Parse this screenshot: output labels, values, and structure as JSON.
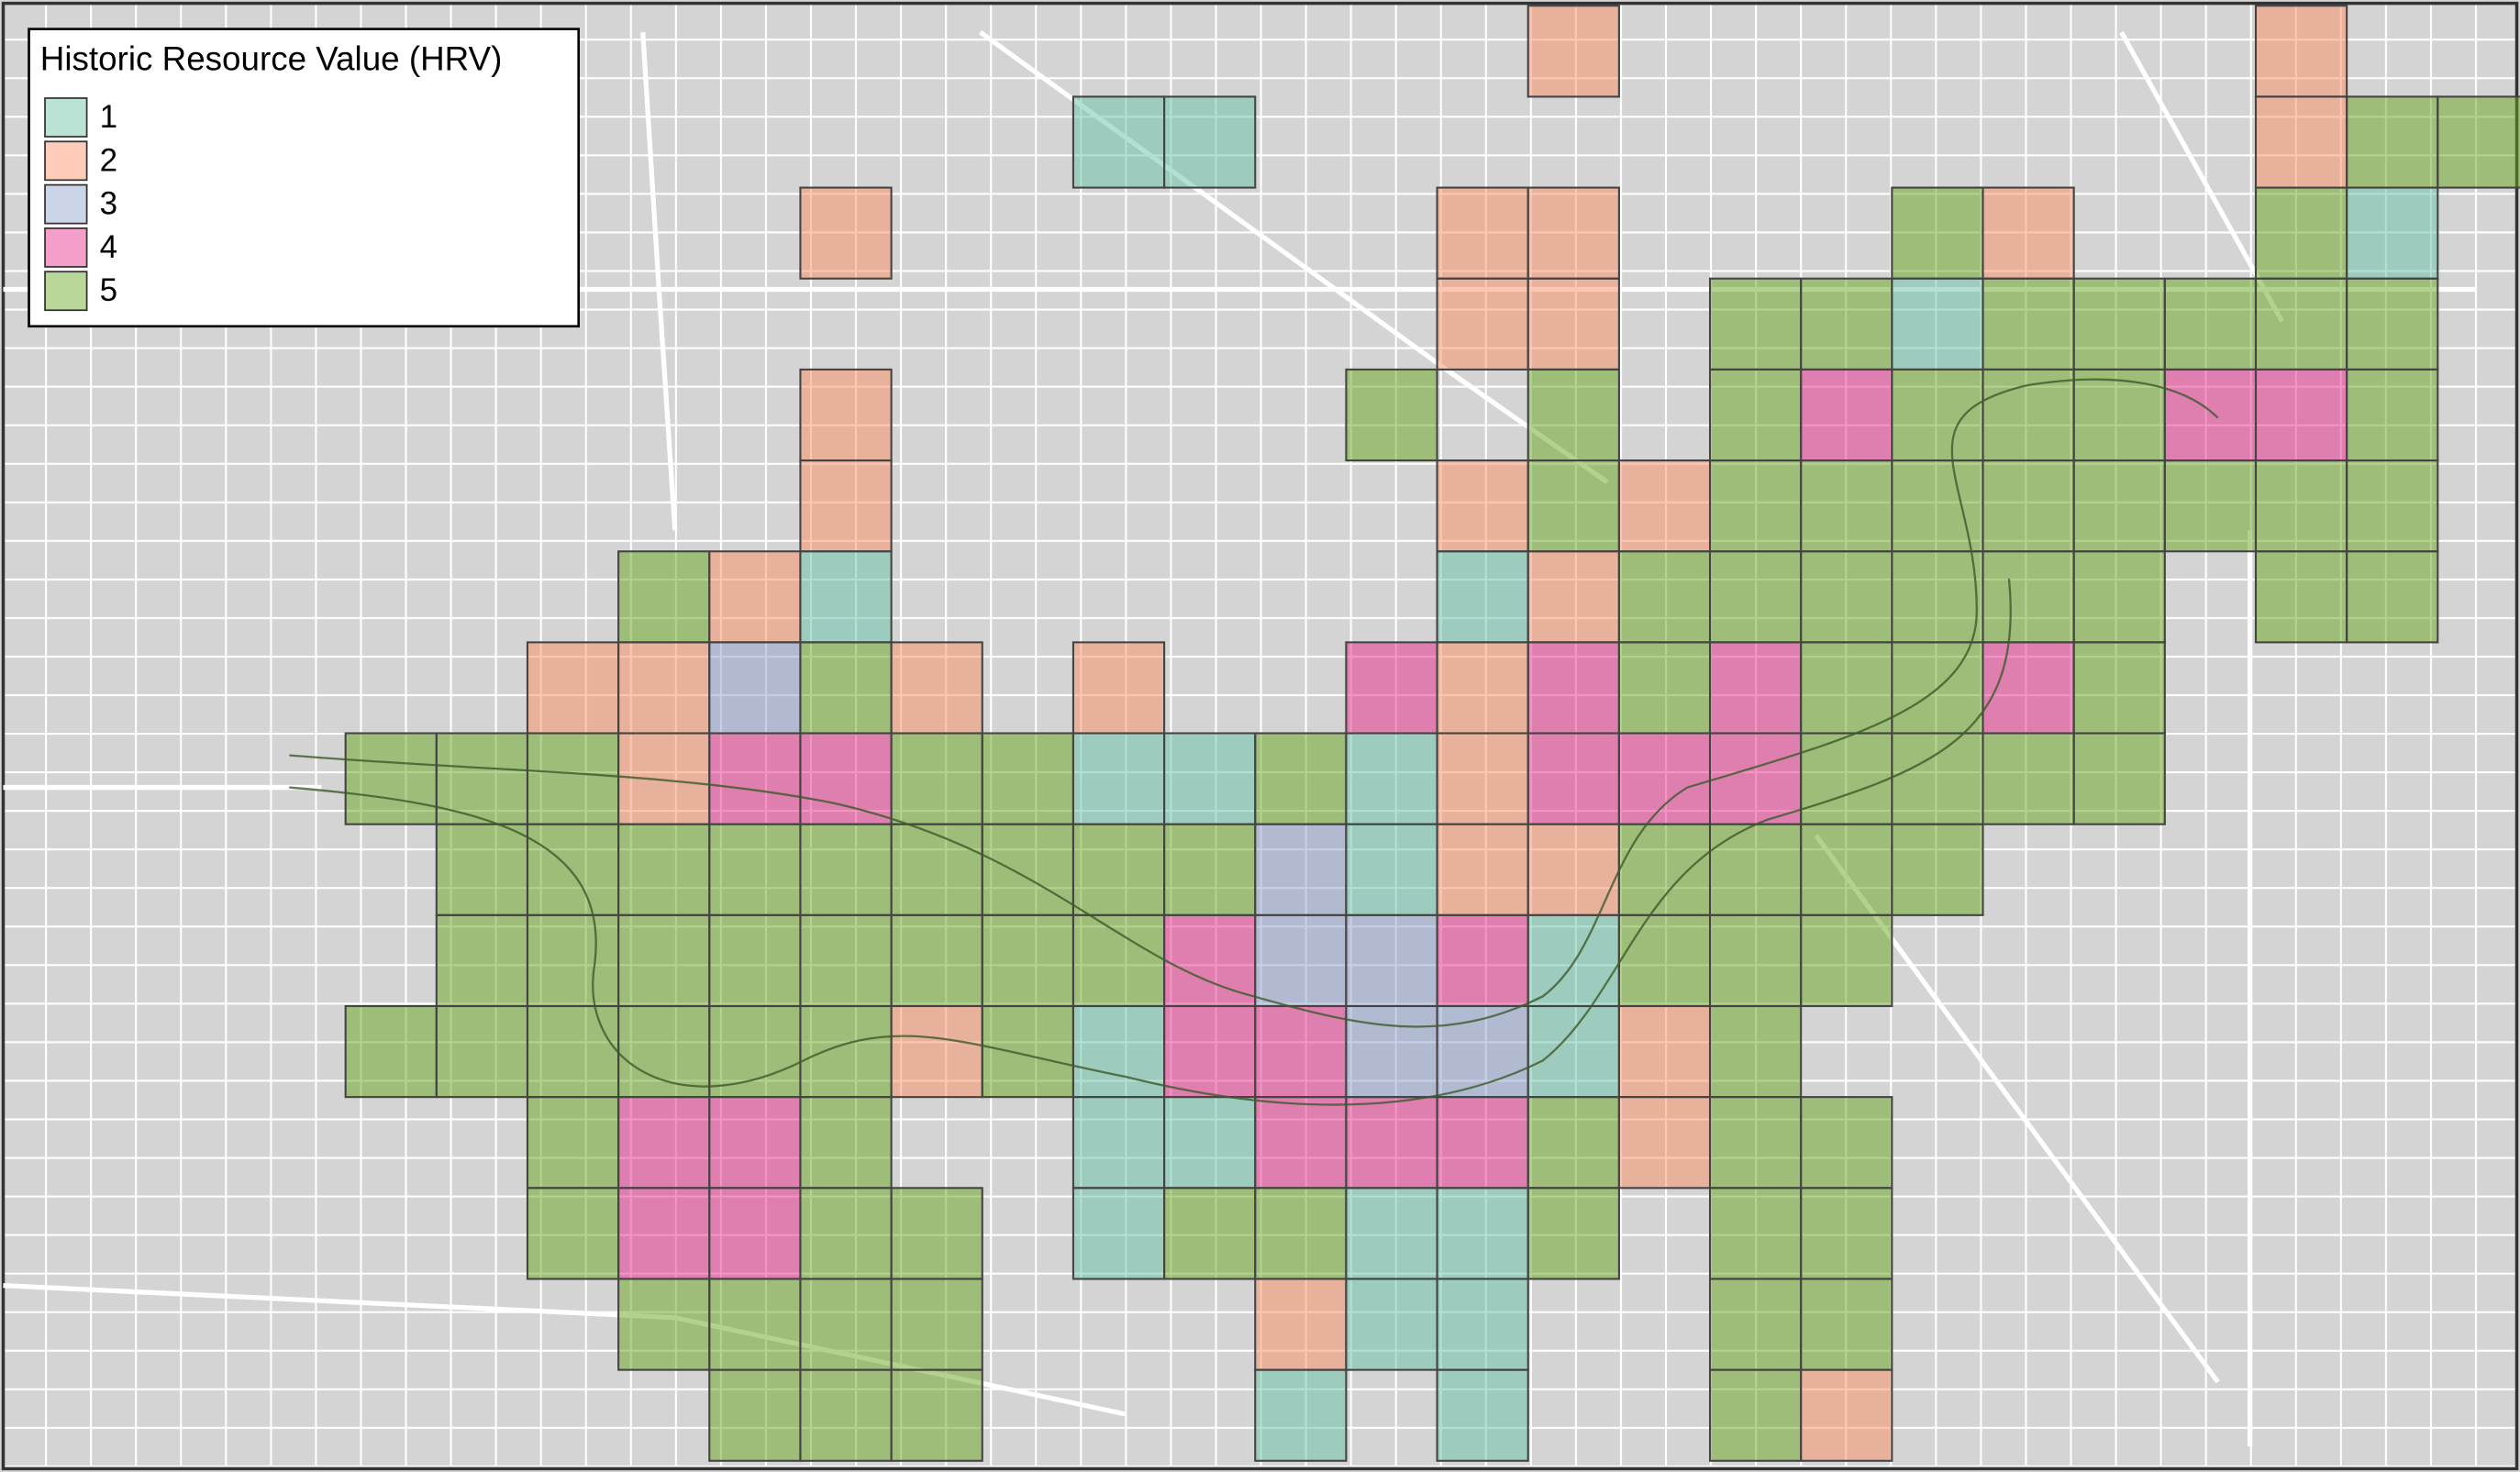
{
  "legend": {
    "title": "Historic Resource Value (HRV)",
    "items": [
      {
        "label": "1",
        "color": "#66c2a5"
      },
      {
        "label": "2",
        "color": "#fc8d62"
      },
      {
        "label": "3",
        "color": "#8da0cb"
      },
      {
        "label": "4",
        "color": "#e7298a"
      },
      {
        "label": "5",
        "color": "#66a61e"
      }
    ]
  }
}
